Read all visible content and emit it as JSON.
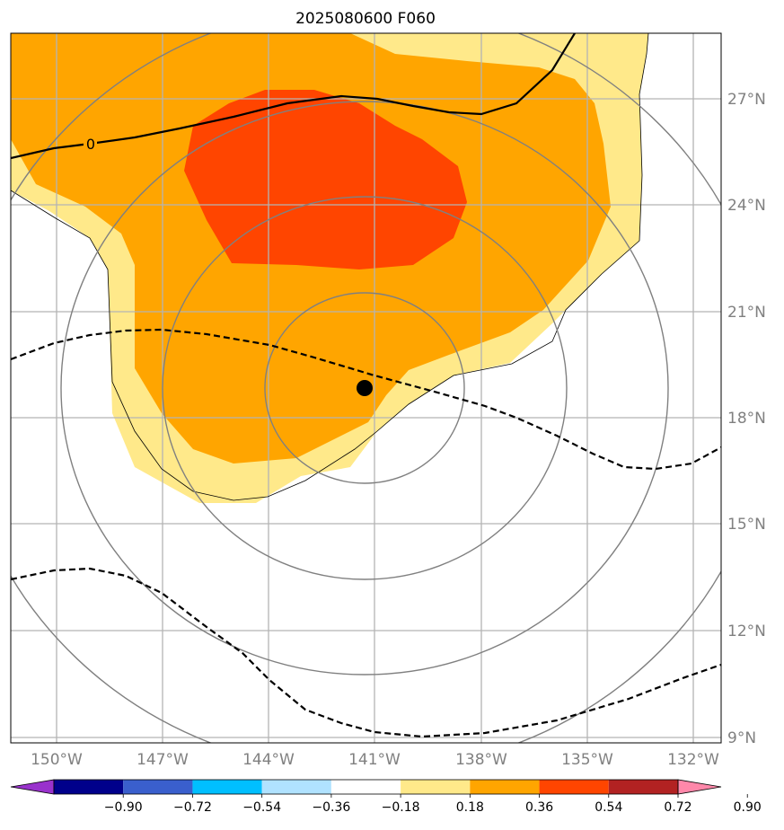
{
  "title": "2025080600 F060",
  "map": {
    "lat_range": [
      8.8,
      28.8
    ],
    "lon_range": [
      -151.3,
      -131.3
    ],
    "lat_ticks": [
      "9°N",
      "12°N",
      "15°N",
      "18°N",
      "21°N",
      "24°N",
      "27°N"
    ],
    "lon_ticks": [
      "150°W",
      "147°W",
      "144°W",
      "141°W",
      "138°W",
      "135°W",
      "132°W"
    ],
    "storm_center": {
      "lon": -141.25,
      "lat": 18.8
    },
    "contour_label": "0",
    "colors": {
      "fill_0_18_0_36": "#ffe98a",
      "fill_0_36_0_54": "#ffa500",
      "fill_0_54_0_72": "#ff4500",
      "contour": "#000000",
      "rings": "#808080",
      "grid": "#b4b4b4"
    }
  },
  "colorbar": {
    "ticks": [
      "−0.90",
      "−0.72",
      "−0.54",
      "−0.36",
      "−0.18",
      "0.18",
      "0.36",
      "0.54",
      "0.72",
      "0.90"
    ],
    "colors": [
      "#9932cc",
      "#00008b",
      "#3a5fcd",
      "#00bfff",
      "#b0e2ff",
      "#ffffff",
      "#ffe98a",
      "#ffa500",
      "#ff4500",
      "#b22222",
      "#ff88aa"
    ]
  }
}
